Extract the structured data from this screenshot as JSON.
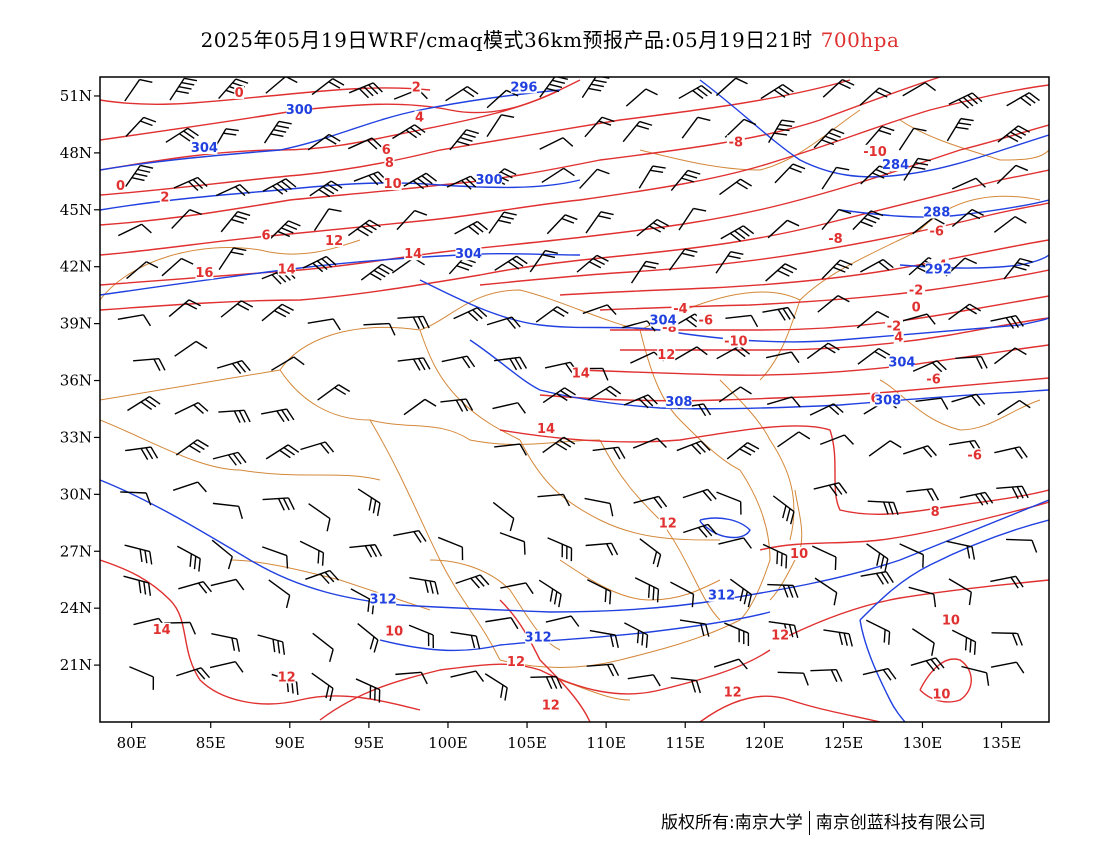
{
  "header": {
    "title": "2025年05月19日WRF/cmaq模式36km预报产品:05月19日21时",
    "level": "700hpa"
  },
  "footer": {
    "left": "版权所有:南京大学",
    "right": "南京创蓝科技有限公司"
  },
  "map": {
    "lon_range": [
      78,
      138
    ],
    "lat_range": [
      18,
      52
    ],
    "lon_ticks": [
      {
        "value": 80,
        "label": "80E"
      },
      {
        "value": 85,
        "label": "85E"
      },
      {
        "value": 90,
        "label": "90E"
      },
      {
        "value": 95,
        "label": "95E"
      },
      {
        "value": 100,
        "label": "100E"
      },
      {
        "value": 105,
        "label": "105E"
      },
      {
        "value": 110,
        "label": "110E"
      },
      {
        "value": 115,
        "label": "115E"
      },
      {
        "value": 120,
        "label": "120E"
      },
      {
        "value": 125,
        "label": "125E"
      },
      {
        "value": 130,
        "label": "130E"
      },
      {
        "value": 135,
        "label": "135E"
      }
    ],
    "lat_ticks": [
      {
        "value": 51,
        "label": "51N"
      },
      {
        "value": 48,
        "label": "48N"
      },
      {
        "value": 45,
        "label": "45N"
      },
      {
        "value": 42,
        "label": "42N"
      },
      {
        "value": 39,
        "label": "39N"
      },
      {
        "value": 36,
        "label": "36N"
      },
      {
        "value": 33,
        "label": "33N"
      },
      {
        "value": 30,
        "label": "30N"
      },
      {
        "value": 27,
        "label": "27N"
      },
      {
        "value": 24,
        "label": "24N"
      },
      {
        "value": 21,
        "label": "21N"
      }
    ],
    "colors": {
      "temperature": "#e03030",
      "height": "#2040e0",
      "boundary": "#d4883a",
      "wind": "#000000"
    },
    "temperature_labels": [
      {
        "text": "0",
        "lon": 86.8,
        "lat": 51.0
      },
      {
        "text": "2",
        "lon": 98.0,
        "lat": 51.3
      },
      {
        "text": "4",
        "lon": 98.2,
        "lat": 49.7
      },
      {
        "text": "6",
        "lon": 96.1,
        "lat": 48.0
      },
      {
        "text": "8",
        "lon": 96.3,
        "lat": 47.3
      },
      {
        "text": "10",
        "lon": 96.5,
        "lat": 46.2
      },
      {
        "text": "12",
        "lon": 92.8,
        "lat": 43.2
      },
      {
        "text": "14",
        "lon": 97.8,
        "lat": 42.5
      },
      {
        "text": "14",
        "lon": 89.8,
        "lat": 41.7
      },
      {
        "text": "16",
        "lon": 84.6,
        "lat": 41.5
      },
      {
        "text": "0",
        "lon": 79.3,
        "lat": 46.1
      },
      {
        "text": "2",
        "lon": 82.1,
        "lat": 45.5
      },
      {
        "text": "6",
        "lon": 88.5,
        "lat": 43.5
      },
      {
        "text": "-8",
        "lon": 118.2,
        "lat": 48.4
      },
      {
        "text": "-10",
        "lon": 127.0,
        "lat": 47.9
      },
      {
        "text": "-8",
        "lon": 124.5,
        "lat": 43.3
      },
      {
        "text": "-6",
        "lon": 130.9,
        "lat": 43.7
      },
      {
        "text": "-4",
        "lon": 131.1,
        "lat": 41.9
      },
      {
        "text": "-2",
        "lon": 129.6,
        "lat": 40.6
      },
      {
        "text": "0",
        "lon": 129.6,
        "lat": 39.7
      },
      {
        "text": "-2",
        "lon": 128.2,
        "lat": 38.7
      },
      {
        "text": "4",
        "lon": 128.5,
        "lat": 38.1
      },
      {
        "text": "-4",
        "lon": 114.7,
        "lat": 39.6
      },
      {
        "text": "-6",
        "lon": 116.3,
        "lat": 39.0
      },
      {
        "text": "-8",
        "lon": 114.0,
        "lat": 38.6
      },
      {
        "text": "-10",
        "lon": 118.2,
        "lat": 37.9
      },
      {
        "text": "12",
        "lon": 113.8,
        "lat": 37.2
      },
      {
        "text": "14",
        "lon": 108.4,
        "lat": 36.2
      },
      {
        "text": "14",
        "lon": 106.2,
        "lat": 33.3
      },
      {
        "text": "6",
        "lon": 127.0,
        "lat": 34.9
      },
      {
        "text": "-6",
        "lon": 130.7,
        "lat": 35.9
      },
      {
        "text": "-6",
        "lon": 133.3,
        "lat": 31.9
      },
      {
        "text": "8",
        "lon": 130.8,
        "lat": 28.9
      },
      {
        "text": "12",
        "lon": 113.9,
        "lat": 28.3
      },
      {
        "text": "10",
        "lon": 122.2,
        "lat": 26.7
      },
      {
        "text": "10",
        "lon": 96.6,
        "lat": 22.6
      },
      {
        "text": "14",
        "lon": 81.9,
        "lat": 22.7
      },
      {
        "text": "12",
        "lon": 89.8,
        "lat": 20.2
      },
      {
        "text": "12",
        "lon": 104.3,
        "lat": 21.0
      },
      {
        "text": "12",
        "lon": 106.5,
        "lat": 18.7
      },
      {
        "text": "12",
        "lon": 118.0,
        "lat": 19.4
      },
      {
        "text": "12",
        "lon": 121.0,
        "lat": 22.4
      },
      {
        "text": "10",
        "lon": 131.8,
        "lat": 23.2
      },
      {
        "text": "10",
        "lon": 131.2,
        "lat": 19.3
      }
    ],
    "height_labels": [
      {
        "text": "296",
        "lon": 104.8,
        "lat": 51.3
      },
      {
        "text": "300",
        "lon": 90.6,
        "lat": 50.1
      },
      {
        "text": "304",
        "lon": 84.6,
        "lat": 48.1
      },
      {
        "text": "300",
        "lon": 102.6,
        "lat": 46.4
      },
      {
        "text": "284",
        "lon": 128.3,
        "lat": 47.2
      },
      {
        "text": "288",
        "lon": 130.9,
        "lat": 44.7
      },
      {
        "text": "292",
        "lon": 131.0,
        "lat": 41.7
      },
      {
        "text": "304",
        "lon": 101.3,
        "lat": 42.5
      },
      {
        "text": "304",
        "lon": 113.6,
        "lat": 39.0
      },
      {
        "text": "304",
        "lon": 128.7,
        "lat": 36.8
      },
      {
        "text": "308",
        "lon": 114.6,
        "lat": 34.7
      },
      {
        "text": "308",
        "lon": 127.8,
        "lat": 34.8
      },
      {
        "text": "312",
        "lon": 95.9,
        "lat": 24.3
      },
      {
        "text": "312",
        "lon": 117.3,
        "lat": 24.5
      },
      {
        "text": "312",
        "lon": 105.7,
        "lat": 22.3
      }
    ]
  }
}
